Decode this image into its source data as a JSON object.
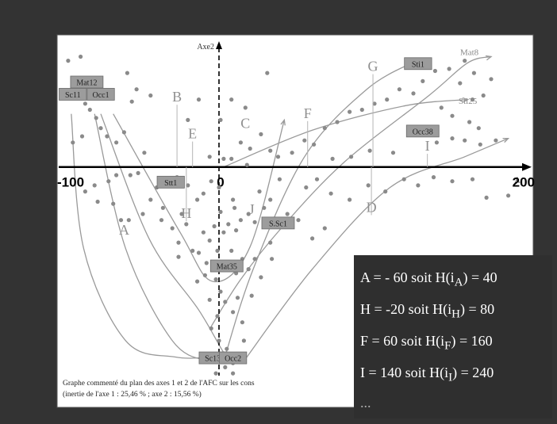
{
  "colors": {
    "background": "#333333",
    "plot_bg": "#ffffff",
    "points": "#8a8a8a",
    "curves": "#9a9a9a",
    "tag_bg": "#9c9c9c",
    "legend_bg": "#2f2f2f",
    "legend_text": "#ffffff"
  },
  "caption": {
    "line1": "Graphe commenté du plan des axes 1 et 2 de l'AFC sur les cons",
    "line2": "(inertie de l'axe 1 : 25,46 % ; axe 2 : 15,56 %)"
  },
  "legend": {
    "lines": [
      {
        "prefix": "A = - 60 soit H(i",
        "sub": "A",
        "suffix": ") = 40"
      },
      {
        "prefix": "H = -20 soit H(i",
        "sub": "H",
        "suffix": ") = 80"
      },
      {
        "prefix": "F = 60 soit H(i",
        "sub": "F",
        "suffix": ") = 160"
      },
      {
        "prefix": "I = 140 soit H(i",
        "sub": "I",
        "suffix": ") = 240"
      }
    ],
    "ellipsis": "..."
  },
  "chart_data": {
    "type": "scatter",
    "xlabel": "A",
    "ylabel": "Axe2",
    "xlim": [
      -100,
      200
    ],
    "y_axis_line_at_x": 0,
    "x_ticks": [
      {
        "value": -100,
        "label": "-100"
      },
      {
        "value": 0,
        "label": "0"
      },
      {
        "value": 200,
        "label": "200"
      }
    ],
    "grid": false,
    "points": [
      [
        -89,
        4.2
      ],
      [
        -86,
        3.1
      ],
      [
        -94,
        1.2
      ],
      [
        -88,
        1.5
      ],
      [
        -83,
        2.8
      ],
      [
        -79,
        2.4
      ],
      [
        -76,
        1.9
      ],
      [
        -72,
        1.5
      ],
      [
        -66,
        1.2
      ],
      [
        -61,
        1.7
      ],
      [
        -48,
        0.7
      ],
      [
        -52,
        -0.3
      ],
      [
        -57,
        -0.4
      ],
      [
        -66,
        -0.4
      ],
      [
        -71,
        -0.7
      ],
      [
        -80,
        -0.9
      ],
      [
        -86,
        -1.2
      ],
      [
        -78,
        -1.7
      ],
      [
        -68,
        -1.8
      ],
      [
        -63,
        -2.6
      ],
      [
        -58,
        -2.6
      ],
      [
        -49,
        -2.3
      ],
      [
        -36,
        -2.0
      ],
      [
        -24,
        -2.3
      ],
      [
        -21,
        -2.8
      ],
      [
        -26,
        -3.7
      ],
      [
        -17,
        -4.1
      ],
      [
        -13,
        -4.2
      ],
      [
        -8,
        -4.7
      ],
      [
        -6,
        -3.6
      ],
      [
        -3,
        -2.9
      ],
      [
        1,
        -2.2
      ],
      [
        6,
        -2.8
      ],
      [
        3,
        -3.2
      ],
      [
        11,
        -3.1
      ],
      [
        14,
        -2.6
      ],
      [
        10,
        -2.0
      ],
      [
        19,
        -2.3
      ],
      [
        23,
        -2.7
      ],
      [
        29,
        -2.0
      ],
      [
        33,
        -1.6
      ],
      [
        26,
        -1.2
      ],
      [
        9,
        -1.6
      ],
      [
        0,
        -1.0
      ],
      [
        -5,
        -0.7
      ],
      [
        -10,
        -1.3
      ],
      [
        -14,
        -1.6
      ],
      [
        -20,
        -0.9
      ],
      [
        -27,
        -0.5
      ],
      [
        -33,
        -0.9
      ],
      [
        -40,
        -1.0
      ],
      [
        -44,
        -1.6
      ],
      [
        -37,
        -2.6
      ],
      [
        -30,
        -3.0
      ],
      [
        -26,
        -4.4
      ],
      [
        -10,
        -3.2
      ],
      [
        -1,
        -4.1
      ],
      [
        2,
        -4.7
      ],
      [
        8,
        -4.1
      ],
      [
        15,
        -4.5
      ],
      [
        19,
        -5.0
      ],
      [
        23,
        -4.5
      ],
      [
        11,
        -5.2
      ],
      [
        -2,
        -5.5
      ],
      [
        -9,
        -5.3
      ],
      [
        -14,
        -5.6
      ],
      [
        1,
        -6.1
      ],
      [
        4,
        -6.6
      ],
      [
        9,
        -7.1
      ],
      [
        12,
        -6.4
      ],
      [
        -6,
        -6.5
      ],
      [
        -1,
        -7.3
      ],
      [
        -5,
        -7.9
      ],
      [
        0,
        -8.5
      ],
      [
        5,
        -8.9
      ],
      [
        -2,
        -9.4
      ],
      [
        4,
        -9.8
      ],
      [
        9,
        -9.6
      ],
      [
        16,
        -8.5
      ],
      [
        15,
        -7.6
      ],
      [
        21,
        -6.3
      ],
      [
        27,
        -5.4
      ],
      [
        33,
        -3.7
      ],
      [
        34,
        -4.5
      ],
      [
        3,
        0.4
      ],
      [
        8,
        0.4
      ],
      [
        14,
        1.2
      ],
      [
        20,
        0.9
      ],
      [
        27,
        1.6
      ],
      [
        33,
        0.8
      ],
      [
        38,
        0.5
      ],
      [
        47,
        0.7
      ],
      [
        55,
        1.3
      ],
      [
        61,
        1.1
      ],
      [
        68,
        1.9
      ],
      [
        76,
        2.2
      ],
      [
        84,
        2.7
      ],
      [
        92,
        2.8
      ],
      [
        100,
        3.1
      ],
      [
        108,
        3.3
      ],
      [
        116,
        3.8
      ],
      [
        125,
        3.6
      ],
      [
        131,
        4.2
      ],
      [
        139,
        4.7
      ],
      [
        148,
        4.8
      ],
      [
        158,
        5.2
      ],
      [
        164,
        4.6
      ],
      [
        155,
        4.1
      ],
      [
        143,
        2.9
      ],
      [
        150,
        2.5
      ],
      [
        161,
        2.2
      ],
      [
        167,
        1.9
      ],
      [
        163,
        3.3
      ],
      [
        170,
        3.5
      ],
      [
        175,
        4.3
      ],
      [
        140,
        1.2
      ],
      [
        150,
        1.4
      ],
      [
        158,
        1.3
      ],
      [
        168,
        1.1
      ],
      [
        178,
        1.3
      ],
      [
        122,
        1.9
      ],
      [
        112,
        0.7
      ],
      [
        97,
        0.8
      ],
      [
        85,
        0.5
      ],
      [
        73,
        0.4
      ],
      [
        63,
        -0.6
      ],
      [
        56,
        -1.0
      ],
      [
        72,
        -1.3
      ],
      [
        84,
        -1.6
      ],
      [
        96,
        -0.9
      ],
      [
        107,
        -1.2
      ],
      [
        119,
        -0.6
      ],
      [
        128,
        -0.9
      ],
      [
        138,
        -0.5
      ],
      [
        150,
        -0.7
      ],
      [
        163,
        -0.6
      ],
      [
        172,
        -1.5
      ],
      [
        186,
        -1.4
      ],
      [
        44,
        -2.3
      ],
      [
        51,
        -2.6
      ],
      [
        60,
        -3.5
      ],
      [
        68,
        -3.0
      ],
      [
        39,
        -0.6
      ],
      [
        18,
        0.1
      ],
      [
        -6,
        0.5
      ],
      [
        31,
        4.6
      ],
      [
        17,
        2.9
      ],
      [
        8,
        3.3
      ],
      [
        1,
        2.3
      ],
      [
        -20,
        2.3
      ],
      [
        -13,
        3.3
      ],
      [
        -44,
        3.5
      ],
      [
        -53,
        3.8
      ],
      [
        -56,
        3.2
      ],
      [
        -59,
        4.6
      ],
      [
        -97,
        5.2
      ],
      [
        -89,
        5.4
      ],
      [
        -2,
        -10.1
      ],
      [
        9,
        -10.1
      ]
    ],
    "curves": [
      [
        [
          -95,
          2.6
        ],
        [
          -87,
          -4.0
        ],
        [
          -60,
          -8.5
        ],
        [
          -28,
          -9.3
        ],
        [
          -6,
          -9.3
        ]
      ],
      [
        [
          -80,
          2.6
        ],
        [
          -60,
          -4.0
        ],
        [
          -30,
          -8.5
        ],
        [
          -6,
          -9.5
        ],
        [
          7,
          -9.4
        ]
      ],
      [
        [
          -76,
          2.6
        ],
        [
          -45,
          -3.5
        ],
        [
          -13,
          -7.0
        ],
        [
          5,
          -9.3
        ],
        [
          13,
          -9.5
        ]
      ],
      [
        [
          -68,
          2.6
        ],
        [
          -25,
          -3.2
        ],
        [
          -4,
          -5.6
        ],
        [
          20,
          -3.9
        ],
        [
          42,
          2.3
        ]
      ],
      [
        [
          16,
          -9.5
        ],
        [
          60,
          -5.0
        ],
        [
          110,
          -1.0
        ],
        [
          158,
          0.5
        ],
        [
          186,
          1.4
        ]
      ],
      [
        [
          3,
          -9.5
        ],
        [
          22,
          -5.0
        ],
        [
          55,
          0.5
        ],
        [
          95,
          3.8
        ],
        [
          127,
          5.2
        ]
      ],
      [
        [
          3,
          0.0
        ],
        [
          60,
          1.8
        ],
        [
          120,
          3.0
        ],
        [
          160,
          3.3
        ]
      ],
      [
        [
          -5,
          -7.8
        ],
        [
          14,
          -5.5
        ],
        [
          40,
          -3.0
        ],
        [
          80,
          0.2
        ],
        [
          135,
          3.5
        ],
        [
          160,
          5.1
        ],
        [
          175,
          5.4
        ]
      ]
    ],
    "point_labels": [
      {
        "text": "Mat12",
        "x": -85,
        "y": 4.1,
        "style": "tag"
      },
      {
        "text": "Sc11",
        "x": -94,
        "y": 3.5,
        "style": "tag"
      },
      {
        "text": "Occ1",
        "x": -76,
        "y": 3.5,
        "style": "tag"
      },
      {
        "text": "Stt1",
        "x": -31,
        "y": -0.8,
        "style": "tag"
      },
      {
        "text": "Mat35",
        "x": 5,
        "y": -4.9,
        "style": "tag"
      },
      {
        "text": "S.Sc1",
        "x": 38,
        "y": -2.8,
        "style": "tag"
      },
      {
        "text": "Sc13",
        "x": -4,
        "y": -9.4,
        "style": "tag"
      },
      {
        "text": "Occ2",
        "x": 9,
        "y": -9.4,
        "style": "tag"
      },
      {
        "text": "Sti1",
        "x": 128,
        "y": 5.0,
        "style": "tag"
      },
      {
        "text": "Occ38",
        "x": 131,
        "y": 1.7,
        "style": "tag"
      },
      {
        "text": "Mat8",
        "x": 161,
        "y": 5.6,
        "style": "plain"
      },
      {
        "text": "Sti25",
        "x": 160,
        "y": 3.2,
        "style": "plain"
      }
    ],
    "annotations": [
      {
        "text": "A",
        "x": -61,
        "y": -3.3,
        "lead_to_y": null
      },
      {
        "text": "B",
        "x": -27,
        "y": 3.2,
        "lead_to_y": 0
      },
      {
        "text": "C",
        "x": 17,
        "y": 1.9,
        "lead_to_y": null
      },
      {
        "text": "D",
        "x": 98,
        "y": -2.2,
        "lead_to_y": 0
      },
      {
        "text": "E",
        "x": -17,
        "y": 1.4,
        "lead_to_y": 0
      },
      {
        "text": "F",
        "x": 57,
        "y": 2.4,
        "lead_to_y": 0
      },
      {
        "text": "G",
        "x": 99,
        "y": 4.7,
        "lead_to_y": 0
      },
      {
        "text": "H",
        "x": -21,
        "y": -2.5,
        "lead_to_y": 0
      },
      {
        "text": "I",
        "x": 134,
        "y": 0.8,
        "lead_to_y": 0
      },
      {
        "text": "J",
        "x": 21,
        "y": -2.3,
        "lead_to_y": null
      }
    ]
  }
}
